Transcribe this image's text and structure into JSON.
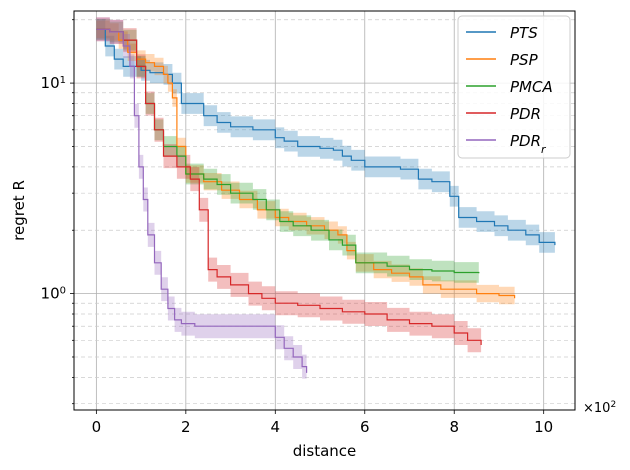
{
  "chart_data": {
    "type": "line",
    "title": "",
    "xlabel": "distance",
    "ylabel": "regret R",
    "x_multiplier_label": "×10",
    "x_multiplier_exp": "2",
    "xscale": "linear",
    "yscale": "log",
    "xlim": [
      -0.5,
      10.7
    ],
    "ylim": [
      0.28,
      22
    ],
    "x_ticks": [
      0,
      2,
      4,
      6,
      8,
      10
    ],
    "x_tick_labels": [
      "0",
      "2",
      "4",
      "6",
      "8",
      "10"
    ],
    "y_ticks": [
      1,
      10
    ],
    "y_tick_bases": [
      "10",
      "10"
    ],
    "y_tick_exps": [
      "0",
      "1"
    ],
    "grid": true,
    "legend_position": "top-right",
    "series": [
      {
        "name": "PTS",
        "name_base": "PTS",
        "name_sub": "",
        "color": "#1f77b4",
        "x": [
          0,
          0.2,
          0.4,
          0.6,
          1.0,
          1.2,
          1.5,
          1.7,
          1.9,
          2.1,
          2.4,
          2.7,
          3.0,
          3.5,
          4.0,
          4.2,
          4.5,
          5.0,
          5.3,
          5.5,
          5.7,
          6.0,
          6.8,
          7.2,
          7.5,
          7.9,
          8.1,
          8.5,
          8.9,
          9.2,
          9.6,
          9.9,
          10.25
        ],
        "y": [
          18,
          15,
          13,
          12,
          11.5,
          11.2,
          11,
          10,
          8,
          8,
          7,
          6.5,
          6.2,
          6,
          5.5,
          5.3,
          5,
          4.9,
          4.8,
          4.5,
          4.3,
          4.0,
          3.9,
          3.5,
          3.4,
          2.9,
          2.3,
          2.2,
          2.1,
          2.0,
          1.9,
          1.75,
          1.7
        ],
        "band": 0.12
      },
      {
        "name": "PSP",
        "name_base": "PSP",
        "name_sub": "",
        "color": "#ff7f0e",
        "x": [
          0,
          0.3,
          0.5,
          0.7,
          0.9,
          1.1,
          1.3,
          1.5,
          1.6,
          1.7,
          1.8,
          2.0,
          2.4,
          2.8,
          3.2,
          3.6,
          4.0,
          4.3,
          4.7,
          5.1,
          5.4,
          5.6,
          5.8,
          6.2,
          6.6,
          7.0,
          7.3,
          7.7,
          8.5,
          9.0,
          9.35
        ],
        "y": [
          18,
          17.5,
          16,
          14,
          13,
          12.5,
          12,
          11,
          10,
          8.5,
          5,
          3.7,
          3.4,
          3.1,
          2.8,
          2.5,
          2.3,
          2.2,
          2.1,
          2.0,
          1.9,
          1.6,
          1.4,
          1.3,
          1.25,
          1.2,
          1.1,
          1.05,
          1.0,
          0.98,
          0.95
        ],
        "band": 0.1
      },
      {
        "name": "PMCA",
        "name_base": "PMCA",
        "name_sub": "",
        "color": "#2ca02c",
        "x": [
          0,
          0.3,
          0.6,
          0.9,
          1.1,
          1.3,
          1.5,
          1.8,
          2.0,
          2.4,
          2.7,
          3.0,
          3.5,
          3.8,
          4.1,
          4.4,
          4.8,
          5.2,
          5.5,
          5.8,
          6.5,
          7.0,
          7.5,
          8.0,
          8.55
        ],
        "y": [
          18,
          17.5,
          16,
          12,
          8,
          6,
          5,
          4.5,
          3.7,
          3.5,
          3.3,
          3.0,
          2.8,
          2.5,
          2.2,
          2.1,
          2.0,
          1.8,
          1.7,
          1.4,
          1.35,
          1.3,
          1.28,
          1.26,
          1.25
        ],
        "band": 0.12
      },
      {
        "name": "PDR",
        "name_base": "PDR",
        "name_sub": "",
        "color": "#d62728",
        "x": [
          0,
          0.3,
          0.6,
          0.9,
          1.1,
          1.3,
          1.5,
          1.8,
          2.1,
          2.3,
          2.5,
          2.7,
          3.0,
          3.4,
          3.7,
          4.0,
          4.5,
          5.0,
          5.5,
          6.0,
          6.5,
          7.0,
          7.5,
          8.0,
          8.3,
          8.6
        ],
        "y": [
          18,
          17.5,
          16,
          12,
          8,
          6,
          4.5,
          4.0,
          3.5,
          2.5,
          1.3,
          1.2,
          1.1,
          1.0,
          0.95,
          0.9,
          0.88,
          0.85,
          0.82,
          0.8,
          0.75,
          0.72,
          0.7,
          0.65,
          0.6,
          0.57
        ],
        "band": 0.14
      },
      {
        "name": "PDR_r",
        "name_base": "PDR",
        "name_sub": "r",
        "color": "#9467bd",
        "x": [
          0,
          0.3,
          0.6,
          0.75,
          0.85,
          0.95,
          1.05,
          1.15,
          1.3,
          1.45,
          1.6,
          1.75,
          1.9,
          2.2,
          2.6,
          3.0,
          3.5,
          3.8,
          4.0,
          4.2,
          4.4,
          4.6,
          4.7
        ],
        "y": [
          18,
          17.5,
          15,
          12,
          7,
          4,
          2.8,
          1.9,
          1.4,
          1.05,
          0.85,
          0.75,
          0.72,
          0.7,
          0.7,
          0.7,
          0.7,
          0.7,
          0.62,
          0.55,
          0.5,
          0.45,
          0.42
        ],
        "band": 0.14
      }
    ]
  }
}
